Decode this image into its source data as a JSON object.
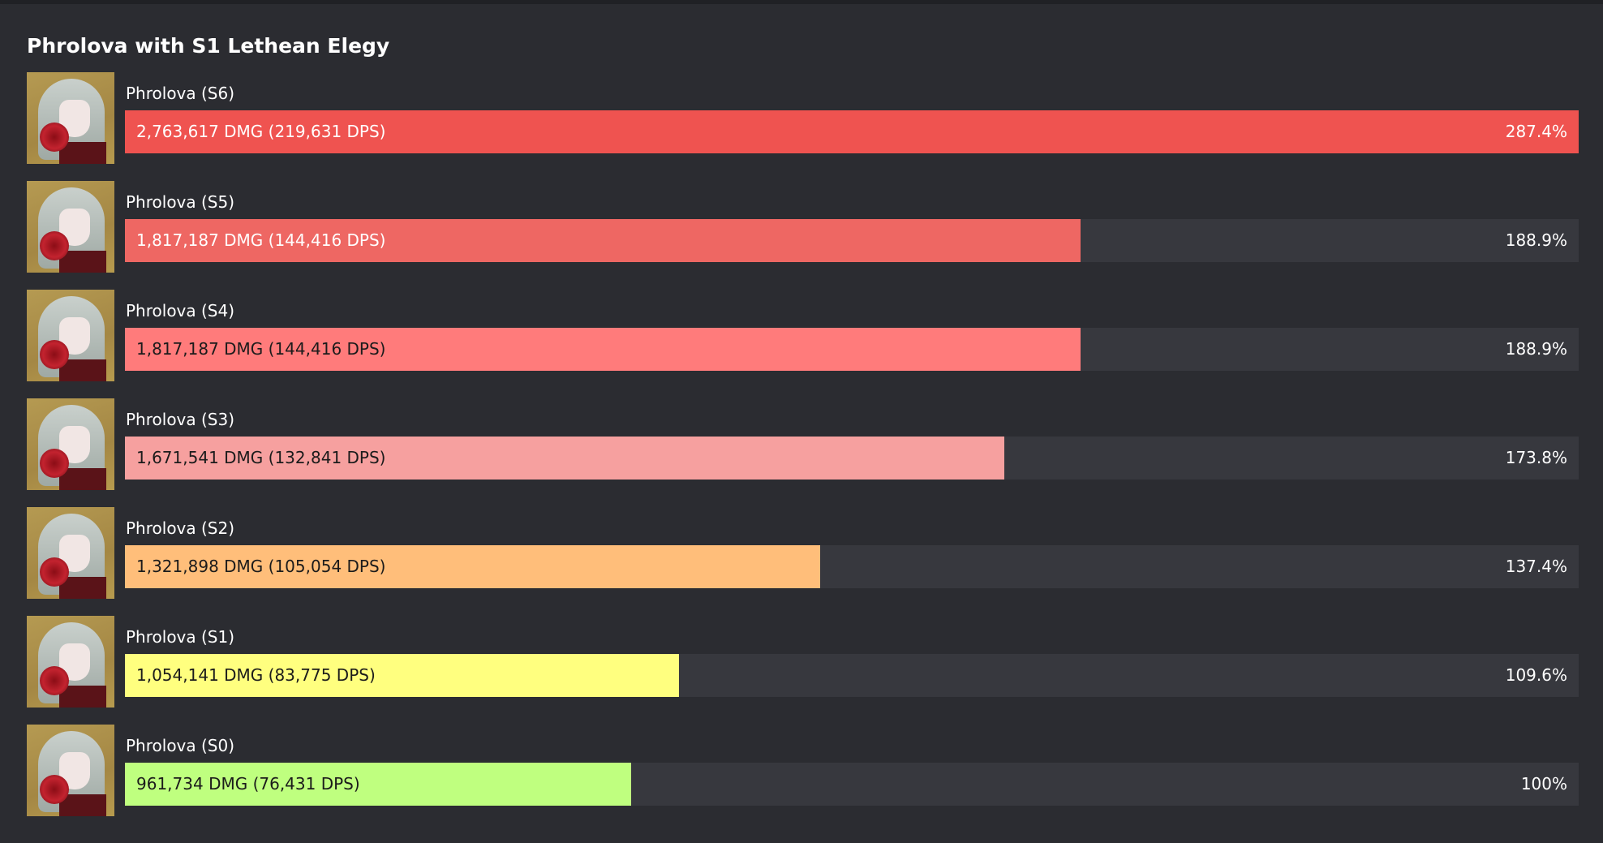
{
  "title": "Phrolova with S1 Lethean Elegy",
  "rows": [
    {
      "name": "Phrolova (S6)",
      "dmg_label": "2,763,617 DMG (219,631 DPS)",
      "percent_label": "287.4%",
      "percent": 287.4,
      "color": "#ef5350",
      "text_color": "#ffffff"
    },
    {
      "name": "Phrolova (S5)",
      "dmg_label": "1,817,187 DMG (144,416 DPS)",
      "percent_label": "188.9%",
      "percent": 188.9,
      "color": "#ee6763",
      "text_color": "#ffffff"
    },
    {
      "name": "Phrolova (S4)",
      "dmg_label": "1,817,187 DMG (144,416 DPS)",
      "percent_label": "188.9%",
      "percent": 188.9,
      "color": "#ff7b7b",
      "text_color": "#1b1b1b"
    },
    {
      "name": "Phrolova (S3)",
      "dmg_label": "1,671,541 DMG (132,841 DPS)",
      "percent_label": "173.8%",
      "percent": 173.8,
      "color": "#f6a09f",
      "text_color": "#1b1b1b"
    },
    {
      "name": "Phrolova (S2)",
      "dmg_label": "1,321,898 DMG (105,054 DPS)",
      "percent_label": "137.4%",
      "percent": 137.4,
      "color": "#ffbe7a",
      "text_color": "#1b1b1b"
    },
    {
      "name": "Phrolova (S1)",
      "dmg_label": "1,054,141 DMG (83,775 DPS)",
      "percent_label": "109.6%",
      "percent": 109.6,
      "color": "#ffff7f",
      "text_color": "#1b1b1b"
    },
    {
      "name": "Phrolova (S0)",
      "dmg_label": "961,734 DMG (76,431 DPS)",
      "percent_label": "100%",
      "percent": 100,
      "color": "#bfff7f",
      "text_color": "#1b1b1b"
    }
  ]
}
